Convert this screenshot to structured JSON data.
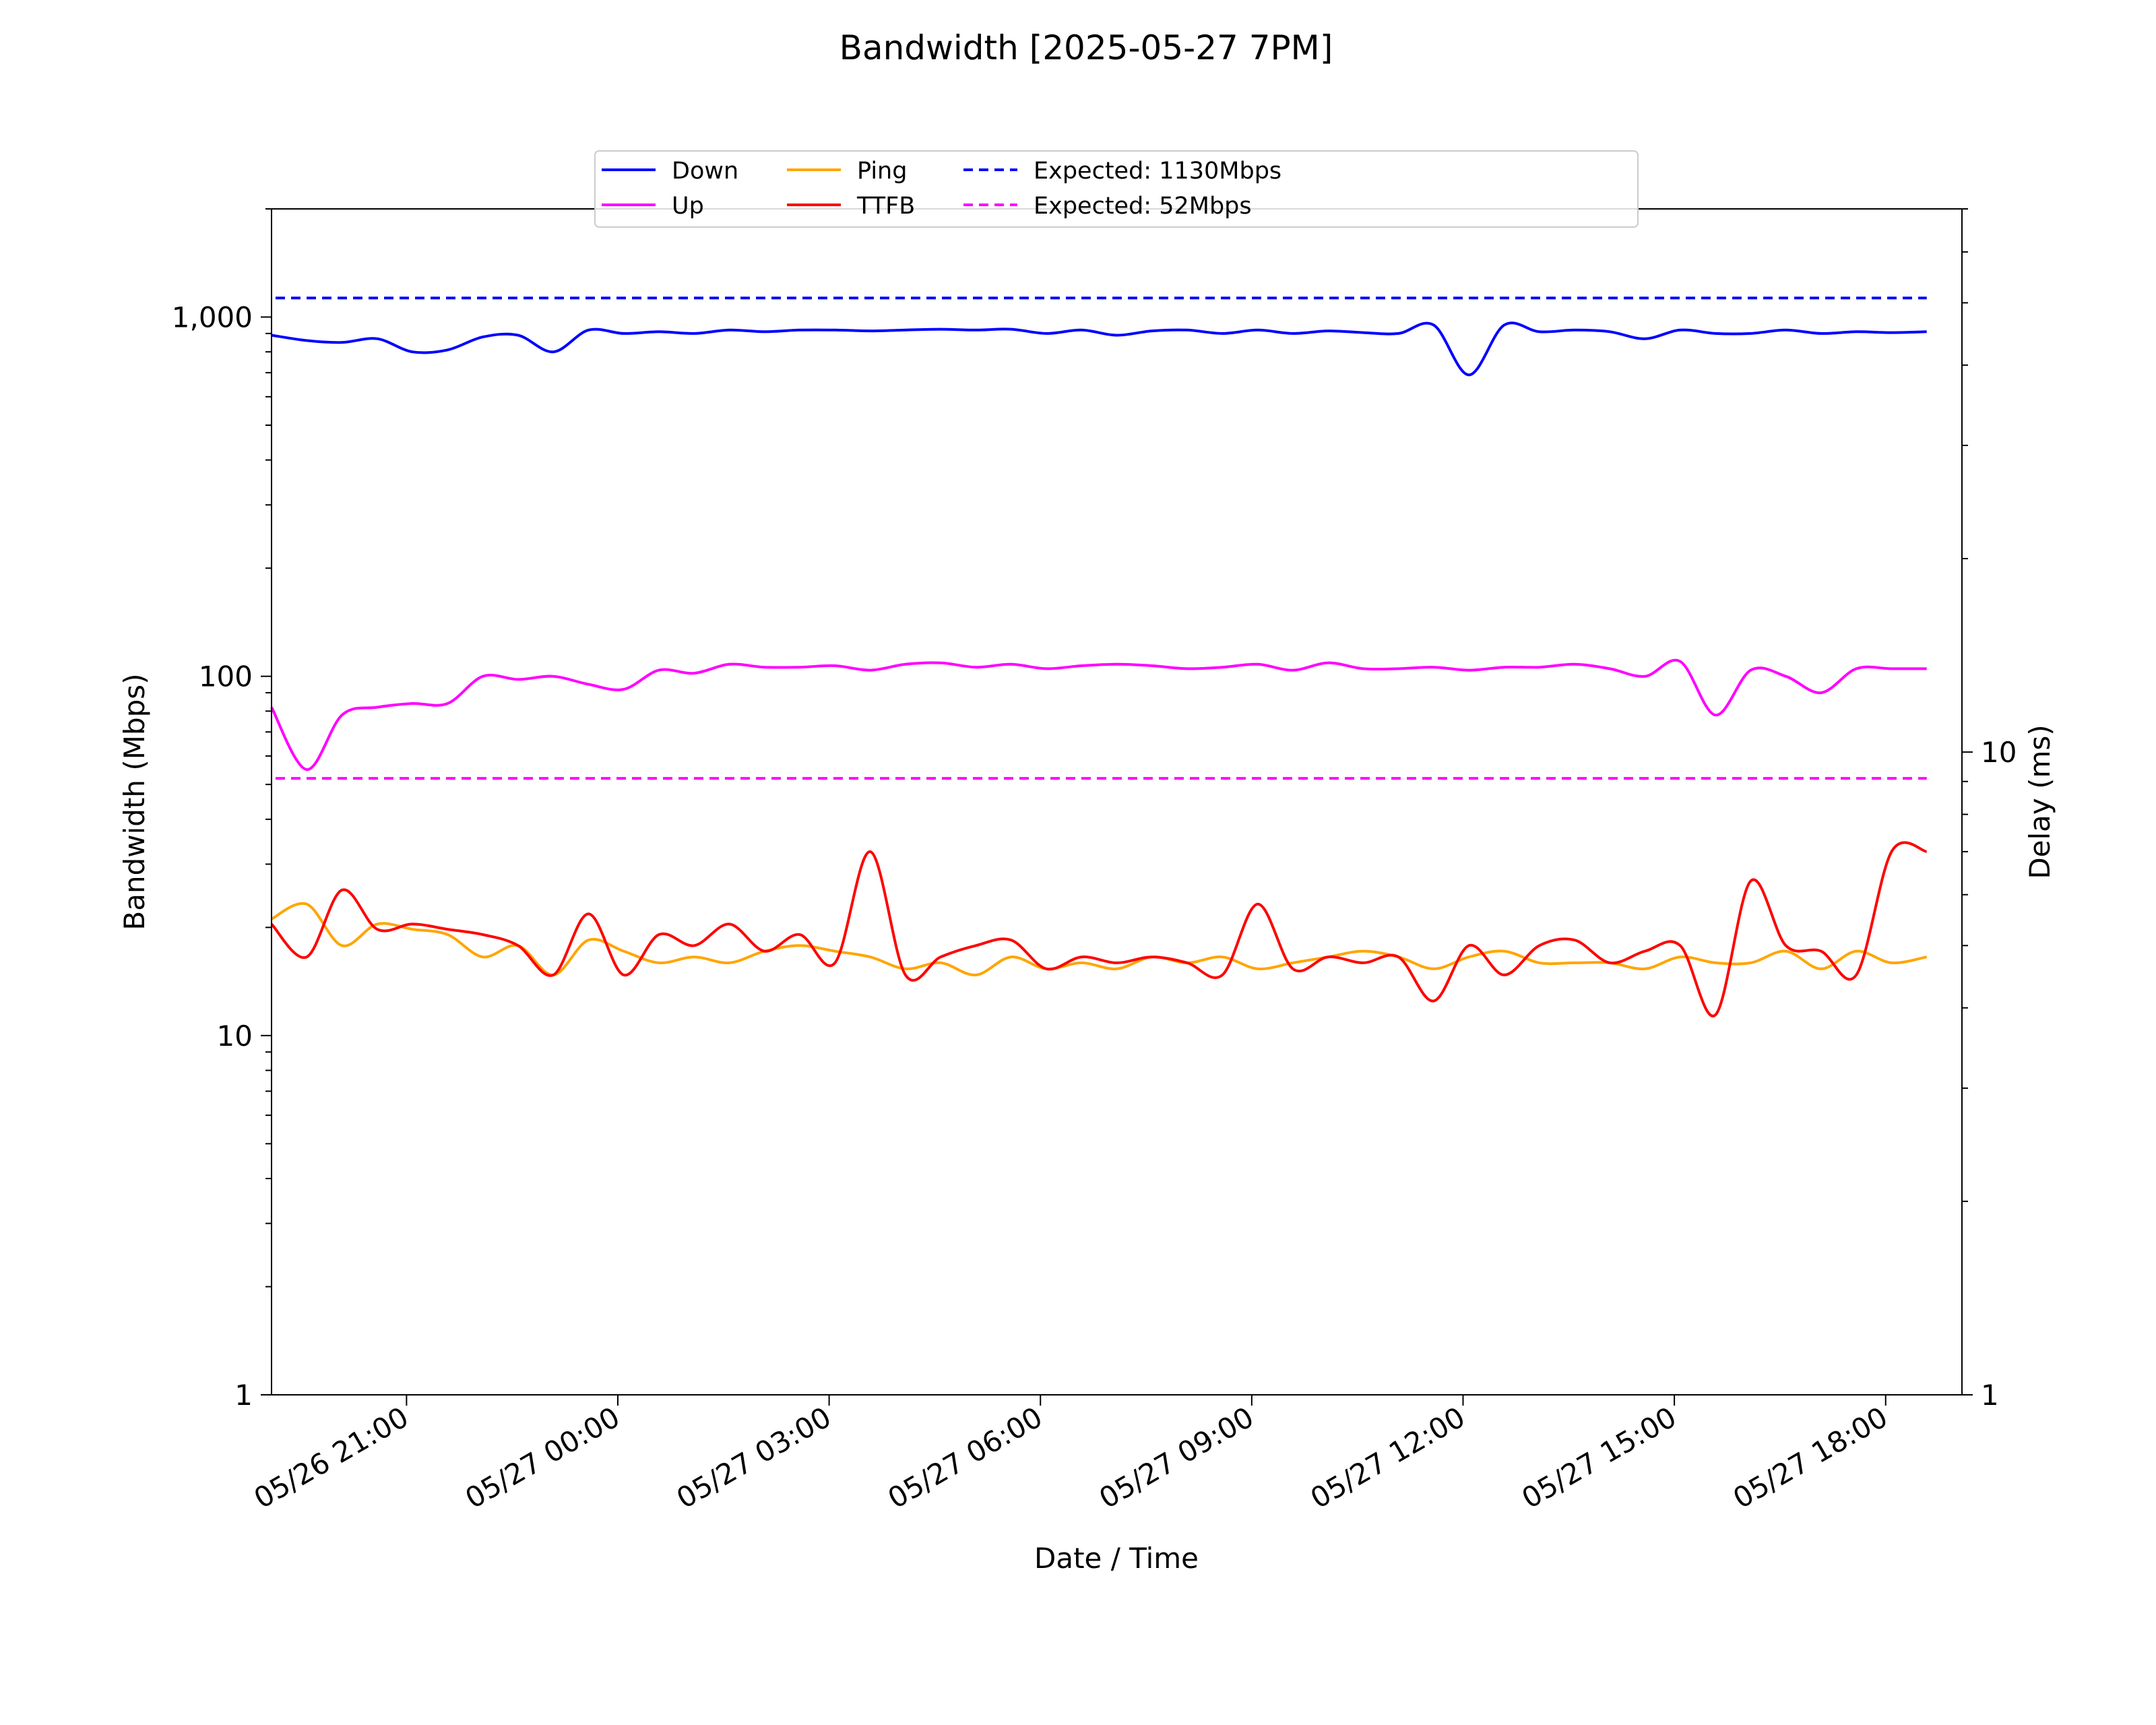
{
  "chart_data": {
    "type": "line",
    "title": "Bandwidth [2025-05-27 7PM]",
    "xlabel": "Date / Time",
    "ylabel_left": "Bandwidth (Mbps)",
    "ylabel_right": "Delay (ms)",
    "yscale_left": "log",
    "yscale_right": "log",
    "ylim_left": [
      1,
      2000
    ],
    "ylim_right": [
      1,
      70
    ],
    "xlim": [
      "2025-05-26 19:05",
      "2025-05-27 19:05"
    ],
    "grid": false,
    "legend_position": "top-center",
    "x_ticks": [
      {
        "t": "2025-05-26 21:00",
        "label": "05/26 21:00"
      },
      {
        "t": "2025-05-27 00:00",
        "label": "05/27 00:00"
      },
      {
        "t": "2025-05-27 03:00",
        "label": "05/27 03:00"
      },
      {
        "t": "2025-05-27 06:00",
        "label": "05/27 06:00"
      },
      {
        "t": "2025-05-27 09:00",
        "label": "05/27 09:00"
      },
      {
        "t": "2025-05-27 12:00",
        "label": "05/27 12:00"
      },
      {
        "t": "2025-05-27 15:00",
        "label": "05/27 15:00"
      },
      {
        "t": "2025-05-27 18:00",
        "label": "05/27 18:00"
      }
    ],
    "y_ticks_left": [
      {
        "v": 1,
        "label": "1"
      },
      {
        "v": 10,
        "label": "10"
      },
      {
        "v": 100,
        "label": "100"
      },
      {
        "v": 1000,
        "label": "1,000"
      }
    ],
    "y_ticks_right": [
      {
        "v": 1,
        "label": "1"
      },
      {
        "v": 10,
        "label": "10"
      }
    ],
    "x": [
      "2025-05-26 19:05",
      "2025-05-26 19:35",
      "2025-05-26 20:05",
      "2025-05-26 20:35",
      "2025-05-26 21:05",
      "2025-05-26 21:35",
      "2025-05-26 22:05",
      "2025-05-26 22:35",
      "2025-05-26 23:05",
      "2025-05-26 23:35",
      "2025-05-27 00:05",
      "2025-05-27 00:35",
      "2025-05-27 01:05",
      "2025-05-27 01:35",
      "2025-05-27 02:05",
      "2025-05-27 02:35",
      "2025-05-27 03:05",
      "2025-05-27 03:35",
      "2025-05-27 04:05",
      "2025-05-27 04:35",
      "2025-05-27 05:05",
      "2025-05-27 05:35",
      "2025-05-27 06:05",
      "2025-05-27 06:35",
      "2025-05-27 07:05",
      "2025-05-27 07:35",
      "2025-05-27 08:05",
      "2025-05-27 08:35",
      "2025-05-27 09:05",
      "2025-05-27 09:35",
      "2025-05-27 10:05",
      "2025-05-27 10:35",
      "2025-05-27 11:05",
      "2025-05-27 11:35",
      "2025-05-27 12:05",
      "2025-05-27 12:35",
      "2025-05-27 13:05",
      "2025-05-27 13:35",
      "2025-05-27 14:05",
      "2025-05-27 14:35",
      "2025-05-27 15:05",
      "2025-05-27 15:35",
      "2025-05-27 16:05",
      "2025-05-27 16:35",
      "2025-05-27 17:05",
      "2025-05-27 17:35",
      "2025-05-27 18:05",
      "2025-05-27 18:35"
    ],
    "series": [
      {
        "name": "Down",
        "axis": "left",
        "color": "#0000ff",
        "style": "solid",
        "values": [
          890,
          860,
          850,
          870,
          800,
          810,
          880,
          890,
          800,
          920,
          900,
          910,
          900,
          920,
          910,
          920,
          920,
          915,
          920,
          925,
          920,
          925,
          900,
          920,
          890,
          915,
          920,
          900,
          920,
          900,
          915,
          905,
          900,
          950,
          690,
          950,
          910,
          920,
          910,
          870,
          920,
          900,
          900,
          920,
          900,
          910,
          905,
          910
        ]
      },
      {
        "name": "Up",
        "axis": "left",
        "color": "#ff00ff",
        "style": "solid",
        "values": [
          82,
          55,
          78,
          82,
          84,
          84,
          100,
          98,
          100,
          95,
          92,
          104,
          102,
          108,
          106,
          106,
          107,
          104,
          108,
          109,
          106,
          108,
          105,
          107,
          108,
          107,
          105,
          106,
          108,
          104,
          109,
          105,
          105,
          106,
          104,
          106,
          106,
          108,
          105,
          100,
          110,
          78,
          104,
          100,
          90,
          105,
          105,
          105
        ]
      },
      {
        "name": "Ping",
        "axis": "right",
        "color": "#ffa500",
        "style": "solid",
        "values": [
          5.5,
          5.8,
          5.0,
          5.4,
          5.3,
          5.2,
          4.8,
          5.0,
          4.5,
          5.1,
          4.9,
          4.7,
          4.8,
          4.7,
          4.9,
          5.0,
          4.9,
          4.8,
          4.6,
          4.7,
          4.5,
          4.8,
          4.6,
          4.7,
          4.6,
          4.8,
          4.7,
          4.8,
          4.6,
          4.7,
          4.8,
          4.9,
          4.8,
          4.6,
          4.8,
          4.9,
          4.7,
          4.7,
          4.7,
          4.6,
          4.8,
          4.7,
          4.7,
          4.9,
          4.6,
          4.9,
          4.7,
          4.8
        ]
      },
      {
        "name": "TTFB",
        "axis": "right",
        "color": "#ff0000",
        "style": "solid",
        "values": [
          5.4,
          4.8,
          6.1,
          5.3,
          5.4,
          5.3,
          5.2,
          5.0,
          4.5,
          5.6,
          4.5,
          5.2,
          5.0,
          5.4,
          4.9,
          5.2,
          4.7,
          7.0,
          4.5,
          4.8,
          5.0,
          5.1,
          4.6,
          4.8,
          4.7,
          4.8,
          4.7,
          4.5,
          5.8,
          4.6,
          4.8,
          4.7,
          4.8,
          4.1,
          5.0,
          4.5,
          5.0,
          5.1,
          4.7,
          4.9,
          5.0,
          3.9,
          6.3,
          5.0,
          4.9,
          4.5,
          7.0,
          7.0
        ]
      },
      {
        "name": "Expected: 1130Mbps",
        "axis": "left",
        "color": "#0000ff",
        "style": "dashed",
        "constant": 1130
      },
      {
        "name": "Expected: 52Mbps",
        "axis": "left",
        "color": "#ff00ff",
        "style": "dashed",
        "constant": 52
      }
    ]
  }
}
